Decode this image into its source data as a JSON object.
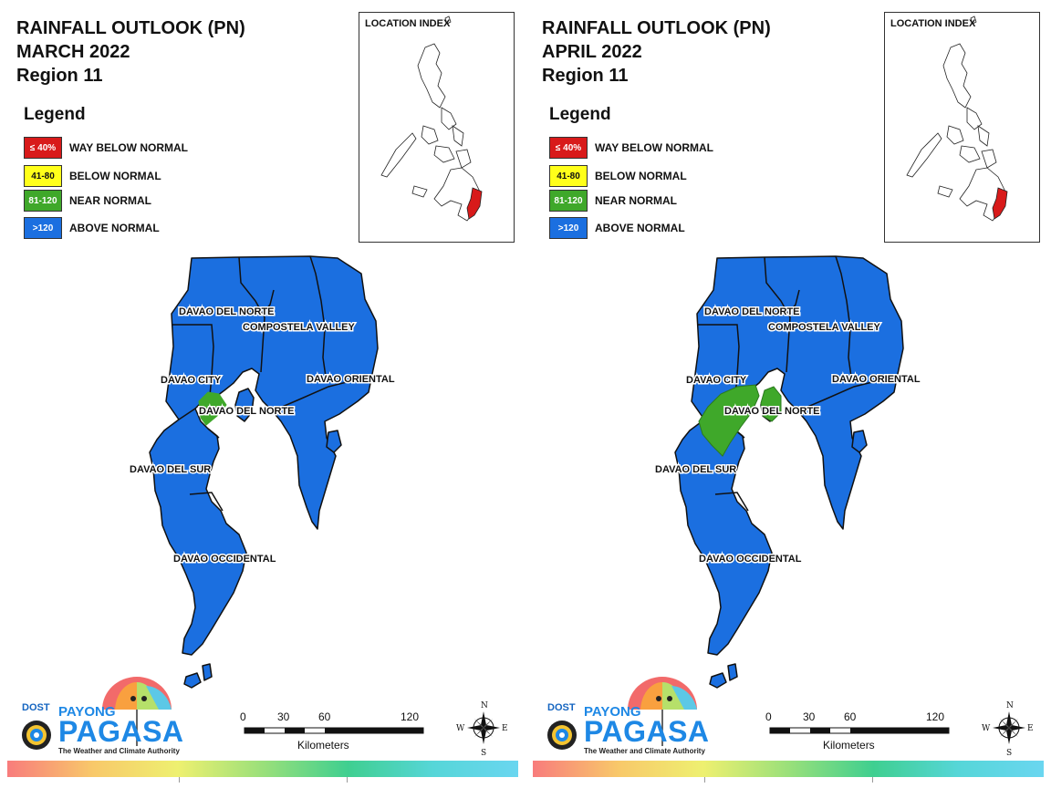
{
  "panels": [
    {
      "id": "march",
      "title_line1": "RAINFALL OUTLOOK (PN)",
      "title_line2": "MARCH 2022",
      "title_line3": "Region 11",
      "near_normal_zone": "small",
      "labels": {
        "davao_del_norte_top": "DAVAO DEL NORTE",
        "compostela_valley": "COMPOSTELA VALLEY",
        "davao_city": "DAVAO CITY",
        "davao_oriental": "DAVAO ORIENTAL",
        "davao_del_norte_mid": "DAVAO DEL NORTE",
        "davao_del_sur": "DAVAO DEL SUR",
        "davao_occidental": "DAVAO OCCIDENTAL"
      }
    },
    {
      "id": "april",
      "title_line1": "RAINFALL OUTLOOK (PN)",
      "title_line2": "APRIL 2022",
      "title_line3": "Region 11",
      "near_normal_zone": "large",
      "labels": {
        "davao_del_norte_top": "DAVAO DEL NORTE",
        "compostela_valley": "COMPOSTELA VALLEY",
        "davao_city": "DAVAO CITY",
        "davao_oriental": "DAVAO ORIENTAL",
        "davao_del_norte_mid": "DAVAO DEL NORTE",
        "davao_del_sur": "DAVAO DEL SUR",
        "davao_occidental": "DAVAO OCCIDENTAL"
      }
    }
  ],
  "legend": {
    "title": "Legend",
    "items": [
      {
        "range": "≤ 40%",
        "label": "WAY BELOW NORMAL",
        "color": "#d81a1a",
        "text_color": "#ffffff"
      },
      {
        "range": "41-80",
        "label": "BELOW NORMAL",
        "color": "#ffff1a",
        "text_color": "#111111"
      },
      {
        "range": "81-120",
        "label": "NEAR NORMAL",
        "color": "#3fa82a",
        "text_color": "#ffffff"
      },
      {
        "range": ">120",
        "label": "ABOVE NORMAL",
        "color": "#1b6fe0",
        "text_color": "#ffffff"
      }
    ]
  },
  "location_index": {
    "title": "LOCATION INDEX",
    "highlight_color": "#d81a1a"
  },
  "scale_bar": {
    "ticks": [
      "0",
      "30",
      "60",
      "120"
    ],
    "unit": "Kilometers"
  },
  "compass": {
    "n": "N",
    "s": "S",
    "e": "E",
    "w": "W"
  },
  "logo": {
    "dost": "DOST",
    "payong": "PAYONG",
    "pagasa": "PAGASA",
    "tagline": "The Weather and Climate Authority"
  }
}
